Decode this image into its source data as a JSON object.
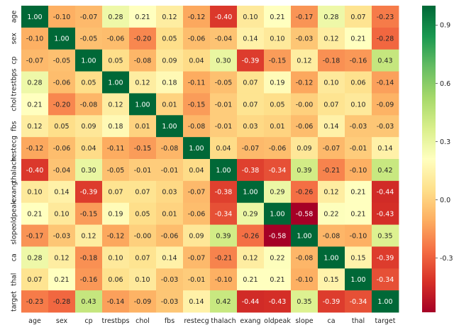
{
  "chart_data": {
    "type": "heatmap",
    "title": "",
    "xlabel": "",
    "ylabel": "",
    "labels": [
      "age",
      "sex",
      "cp",
      "trestbps",
      "chol",
      "fbs",
      "restecg",
      "thalach",
      "exang",
      "oldpeak",
      "slope",
      "ca",
      "thal",
      "target"
    ],
    "values": [
      [
        "1.00",
        "-0.10",
        "-0.07",
        "0.28",
        "0.21",
        "0.12",
        "-0.12",
        "-0.40",
        "0.10",
        "0.21",
        "-0.17",
        "0.28",
        "0.07",
        "-0.23"
      ],
      [
        "-0.10",
        "1.00",
        "-0.05",
        "-0.06",
        "-0.20",
        "0.05",
        "-0.06",
        "-0.04",
        "0.14",
        "0.10",
        "-0.03",
        "0.12",
        "0.21",
        "-0.28"
      ],
      [
        "-0.07",
        "-0.05",
        "1.00",
        "0.05",
        "-0.08",
        "0.09",
        "0.04",
        "0.30",
        "-0.39",
        "-0.15",
        "0.12",
        "-0.18",
        "-0.16",
        "0.43"
      ],
      [
        "0.28",
        "-0.06",
        "0.05",
        "1.00",
        "0.12",
        "0.18",
        "-0.11",
        "-0.05",
        "0.07",
        "0.19",
        "-0.12",
        "0.10",
        "0.06",
        "-0.14"
      ],
      [
        "0.21",
        "-0.20",
        "-0.08",
        "0.12",
        "1.00",
        "0.01",
        "-0.15",
        "-0.01",
        "0.07",
        "0.05",
        "-0.00",
        "0.07",
        "0.10",
        "-0.09"
      ],
      [
        "0.12",
        "0.05",
        "0.09",
        "0.18",
        "0.01",
        "1.00",
        "-0.08",
        "-0.01",
        "0.03",
        "0.01",
        "-0.06",
        "0.14",
        "-0.03",
        "-0.03"
      ],
      [
        "-0.12",
        "-0.06",
        "0.04",
        "-0.11",
        "-0.15",
        "-0.08",
        "1.00",
        "0.04",
        "-0.07",
        "-0.06",
        "0.09",
        "-0.07",
        "-0.01",
        "0.14"
      ],
      [
        "-0.40",
        "-0.04",
        "0.30",
        "-0.05",
        "-0.01",
        "-0.01",
        "0.04",
        "1.00",
        "-0.38",
        "-0.34",
        "0.39",
        "-0.21",
        "-0.10",
        "0.42"
      ],
      [
        "0.10",
        "0.14",
        "-0.39",
        "0.07",
        "0.07",
        "0.03",
        "-0.07",
        "-0.38",
        "1.00",
        "0.29",
        "-0.26",
        "0.12",
        "0.21",
        "-0.44"
      ],
      [
        "0.21",
        "0.10",
        "-0.15",
        "0.19",
        "0.05",
        "0.01",
        "-0.06",
        "-0.34",
        "0.29",
        "1.00",
        "-0.58",
        "0.22",
        "0.21",
        "-0.43"
      ],
      [
        "-0.17",
        "-0.03",
        "0.12",
        "-0.12",
        "-0.00",
        "-0.06",
        "0.09",
        "0.39",
        "-0.26",
        "-0.58",
        "1.00",
        "-0.08",
        "-0.10",
        "0.35"
      ],
      [
        "0.28",
        "0.12",
        "-0.18",
        "0.10",
        "0.07",
        "0.14",
        "-0.07",
        "-0.21",
        "0.12",
        "0.22",
        "-0.08",
        "1.00",
        "0.15",
        "-0.39"
      ],
      [
        "0.07",
        "0.21",
        "-0.16",
        "0.06",
        "0.10",
        "-0.03",
        "-0.01",
        "-0.10",
        "0.21",
        "0.21",
        "-0.10",
        "0.15",
        "1.00",
        "-0.34"
      ],
      [
        "-0.23",
        "-0.28",
        "0.43",
        "-0.14",
        "-0.09",
        "-0.03",
        "0.14",
        "0.42",
        "-0.44",
        "-0.43",
        "0.35",
        "-0.39",
        "-0.34",
        "1.00"
      ]
    ],
    "vmin": -0.58,
    "vmax": 1.0,
    "colormap": "RdYlGn",
    "colormap_stops": [
      "#a50026",
      "#d73027",
      "#f46d43",
      "#fdae61",
      "#fee08b",
      "#ffffbf",
      "#d9ef8b",
      "#a6d96a",
      "#66bd63",
      "#1a9850",
      "#006837"
    ],
    "colorbar": {
      "ticks": [
        "0.9",
        "0.6",
        "0.3",
        "0.0",
        "-0.3"
      ],
      "placement": "right"
    },
    "grid": false
  }
}
